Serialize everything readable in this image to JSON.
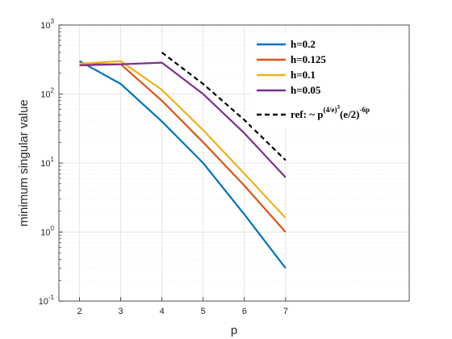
{
  "chart_data": {
    "type": "line",
    "xlabel": "p",
    "ylabel": "minimum singular value",
    "xlim": [
      1.5,
      10
    ],
    "ylim": [
      0.1,
      1000
    ],
    "yscale": "log",
    "x_ticks": [
      2,
      3,
      4,
      5,
      6,
      7
    ],
    "y_ticks": [
      {
        "value": 0.1,
        "base": "10",
        "exp": "-1"
      },
      {
        "value": 1,
        "base": "10",
        "exp": "0"
      },
      {
        "value": 10,
        "base": "10",
        "exp": "1"
      },
      {
        "value": 100,
        "base": "10",
        "exp": "2"
      },
      {
        "value": 1000,
        "base": "10",
        "exp": "3"
      }
    ],
    "grid": true,
    "minor_grid": true,
    "legend_position": "top-right",
    "series": [
      {
        "name": "h=0.2",
        "color": "#0072BD",
        "style": "solid",
        "x": [
          2,
          3,
          4,
          5,
          6,
          7
        ],
        "y": [
          300,
          140,
          40,
          10,
          1.8,
          0.3
        ]
      },
      {
        "name": "h=0.125",
        "color": "#D95319",
        "style": "solid",
        "x": [
          2,
          3,
          4,
          5,
          6,
          7
        ],
        "y": [
          270,
          270,
          80,
          20,
          4.7,
          1.0
        ]
      },
      {
        "name": "h=0.1",
        "color": "#EDB120",
        "style": "solid",
        "x": [
          2,
          3,
          4,
          5,
          6,
          7
        ],
        "y": [
          275,
          300,
          115,
          30,
          7,
          1.6
        ]
      },
      {
        "name": "h=0.05",
        "color": "#7E2F8E",
        "style": "solid",
        "x": [
          2,
          3,
          4,
          5,
          6,
          7
        ],
        "y": [
          260,
          270,
          285,
          100,
          27,
          6.2
        ]
      },
      {
        "name": "ref: ~ p^{(4/e)^3}(e/2)^{-6p}",
        "color": "#000000",
        "style": "dashed",
        "x": [
          4,
          5,
          6,
          7
        ],
        "y": [
          400,
          140,
          42,
          11
        ]
      }
    ],
    "legend_ref": {
      "prefix": "ref: ~ p",
      "sup1": "(4/e)",
      "sup1b": "3",
      "mid": "(e/2)",
      "sup2": "-6p"
    }
  }
}
